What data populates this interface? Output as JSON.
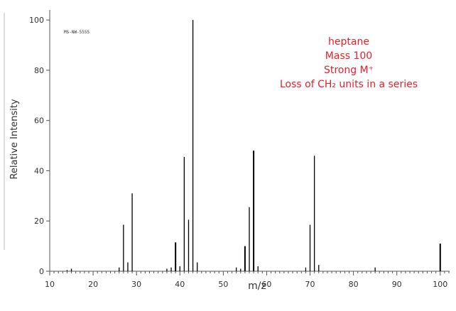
{
  "chart_data": {
    "type": "bar",
    "title": "",
    "xlabel": "m/z",
    "ylabel": "Relative Intensity",
    "xlim": [
      10,
      102
    ],
    "ylim": [
      0,
      104
    ],
    "x_ticks": [
      10,
      20,
      30,
      40,
      50,
      60,
      70,
      80,
      90,
      100
    ],
    "y_ticks": [
      0,
      20,
      40,
      60,
      80,
      100
    ],
    "spectrum_id": "MS-NW-5555",
    "grid": false,
    "bar_color": "#000000",
    "annotation_color": "#e8202a",
    "annotations": [
      "heptane",
      "Mass 100",
      "Strong M⁺",
      "Loss of CH₂ units in a series"
    ],
    "series": [
      {
        "x": [
          14,
          15,
          26,
          27,
          28,
          29,
          37,
          38,
          39,
          40,
          41,
          42,
          43,
          44,
          53,
          54,
          55,
          56,
          57,
          58,
          69,
          70,
          71,
          72,
          85,
          100
        ],
        "y": [
          0.5,
          1.0,
          1.5,
          18.5,
          3.5,
          31.0,
          1.0,
          1.5,
          11.5,
          2.0,
          45.5,
          20.5,
          100.0,
          3.5,
          1.5,
          1.0,
          10.0,
          25.5,
          48.0,
          2.0,
          1.5,
          18.5,
          46.0,
          2.5,
          1.5,
          11.0
        ]
      }
    ]
  }
}
